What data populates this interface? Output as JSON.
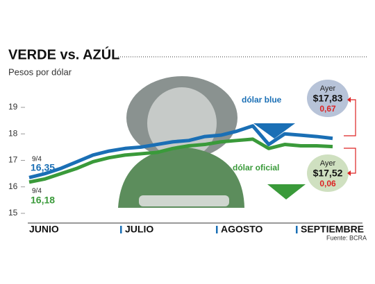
{
  "chart_data": {
    "type": "line",
    "title": "VERDE vs. AZÚL",
    "subtitle": "Pesos por dólar",
    "categories": [
      "JUNIO",
      null,
      null,
      null,
      null,
      null,
      "JULIO",
      null,
      null,
      null,
      null,
      null,
      "AGOSTO",
      null,
      null,
      null,
      null,
      "SEPTIEMBRE",
      null,
      null
    ],
    "series": [
      {
        "name": "dólar blue",
        "color": "#1a6fb5",
        "values": [
          16.35,
          16.5,
          16.7,
          16.95,
          17.2,
          17.35,
          17.45,
          17.5,
          17.6,
          17.7,
          17.75,
          17.9,
          17.95,
          18.1,
          18.3,
          17.6,
          18.0,
          17.95,
          17.9,
          17.83
        ]
      },
      {
        "name": "dólar oficial",
        "color": "#3a9a3a",
        "values": [
          16.18,
          16.3,
          16.5,
          16.7,
          16.95,
          17.1,
          17.2,
          17.25,
          17.3,
          17.45,
          17.55,
          17.6,
          17.7,
          17.75,
          17.8,
          17.45,
          17.6,
          17.55,
          17.55,
          17.52
        ]
      }
    ],
    "ylim": [
      15,
      19
    ],
    "yticks": [
      15,
      16,
      17,
      18,
      19
    ],
    "grid": false,
    "annotations": {
      "blue_start_date": "9/4",
      "blue_start": "16,35",
      "oficial_start_date": "9/4",
      "oficial_start": "16,18",
      "blue_ayer": "Ayer",
      "blue_price": "$17,83",
      "blue_change": "0,67",
      "oficial_ayer": "Ayer",
      "oficial_price": "$17,52",
      "oficial_change": "0,06"
    },
    "source": "Fuente: BCRA"
  }
}
